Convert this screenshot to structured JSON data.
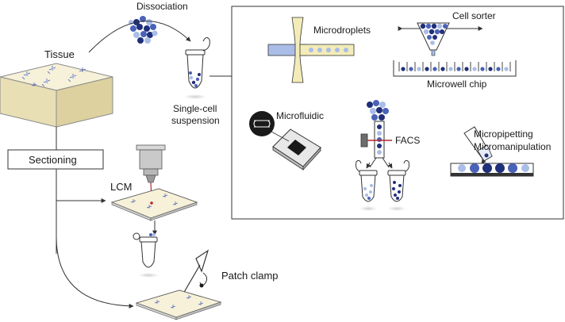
{
  "labels": {
    "dissociation": "Dissociation",
    "tissue": "Tissue",
    "single_cell_line1": "Single-cell",
    "single_cell_line2": "suspension",
    "sectioning": "Sectioning",
    "lcm": "LCM",
    "patch_clamp": "Patch clamp",
    "microdroplets": "Microdroplets",
    "cell_sorter": "Cell sorter",
    "microwell_chip": "Microwell chip",
    "microfluidic": "Microfluidic",
    "facs": "FACS",
    "micropipetting_line1": "Micropipetting",
    "micropipetting_line2": "Micromanipulation"
  },
  "colors": {
    "dark_cell": "#1f2f7a",
    "mid_cell": "#4a62b8",
    "light_cell": "#a9bde6",
    "tissue_top": "#f6f1d8",
    "tissue_side": "#e9dfb5",
    "laser": "#b3262c",
    "droplet_channel": "#f3ecb8",
    "stroke": "#333333"
  }
}
